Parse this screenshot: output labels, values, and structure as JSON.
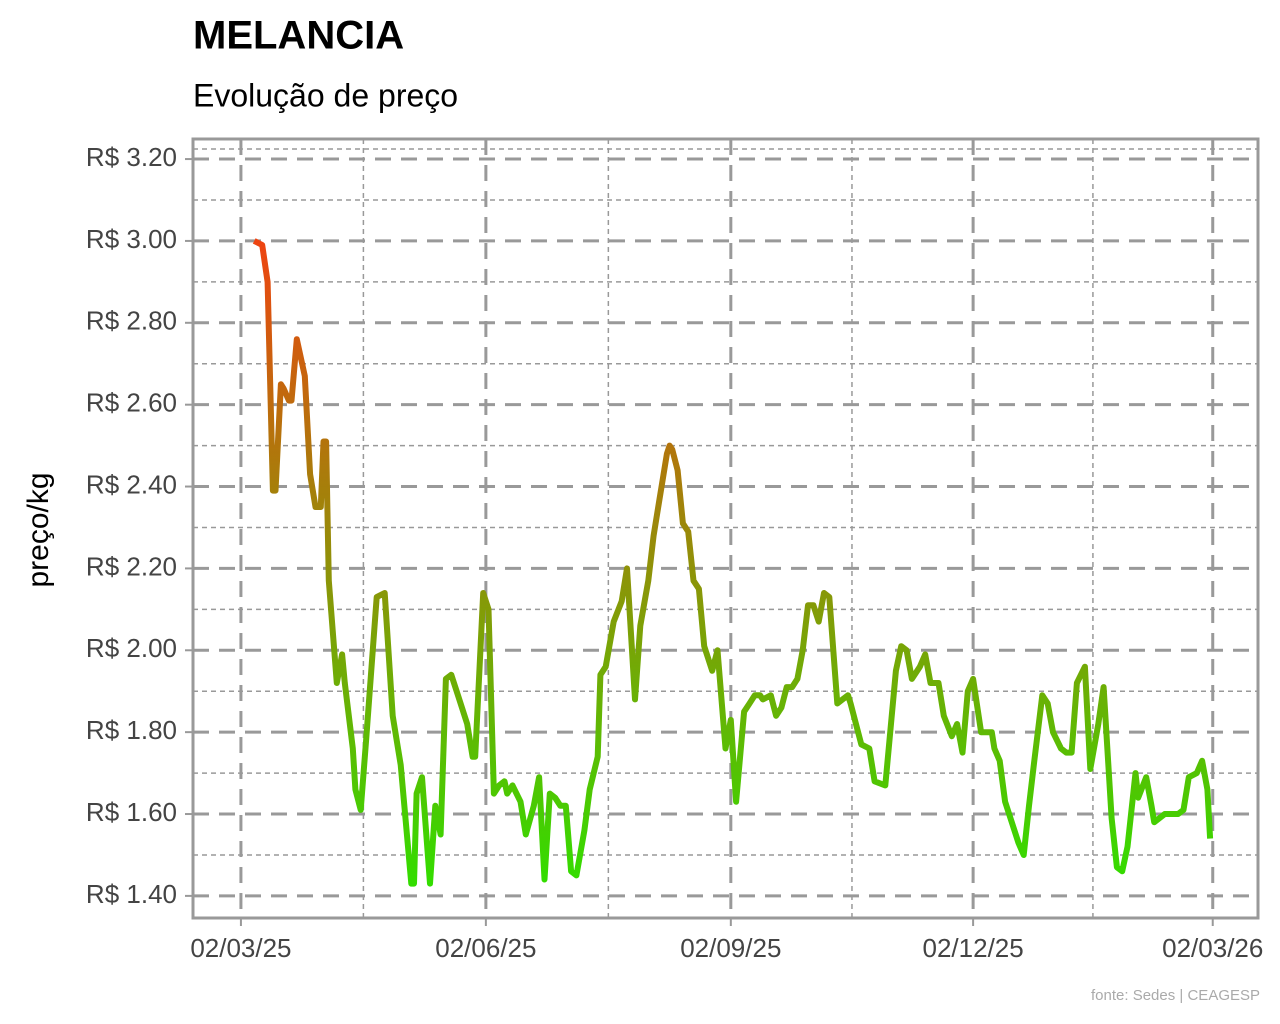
{
  "chart_data": {
    "type": "line",
    "title": "MELANCIA",
    "subtitle": "Evolução de preço",
    "y_label": "preço/kg",
    "caption": "fonte: Sedes | CEAGESP",
    "line_colors": [
      "#33dd00",
      "#ee4411"
    ],
    "grid": true,
    "xlim": [
      "12/02/25",
      "19/03/26"
    ],
    "xticks": [
      "02/03/25",
      "02/06/25",
      "02/09/25",
      "02/12/25",
      "02/03/26"
    ],
    "ylim": [
      1.346,
      3.249
    ],
    "yticks": [
      {
        "value": 1.4,
        "label": "R$ 1.40"
      },
      {
        "value": 1.6,
        "label": "R$ 1.60"
      },
      {
        "value": 1.8,
        "label": "R$ 1.80"
      },
      {
        "value": 2.0,
        "label": "R$ 2.00"
      },
      {
        "value": 2.2,
        "label": "R$ 2.20"
      },
      {
        "value": 2.4,
        "label": "R$ 2.40"
      },
      {
        "value": 2.6,
        "label": "R$ 2.60"
      },
      {
        "value": 2.8,
        "label": "R$ 2.80"
      },
      {
        "value": 3.0,
        "label": "R$ 3.00"
      },
      {
        "value": 3.2,
        "label": "R$ 3.20"
      }
    ],
    "x": [
      "07/03/25",
      "10/03/25",
      "12/03/25",
      "14/03/25",
      "15/03/25",
      "17/03/25",
      "18/03/25",
      "20/03/25",
      "21/03/25",
      "23/03/25",
      "26/03/25",
      "28/03/25",
      "30/03/25",
      "01/04/25",
      "02/04/25",
      "03/04/25",
      "04/04/25",
      "07/04/25",
      "09/04/25",
      "10/04/25",
      "13/04/25",
      "14/04/25",
      "16/04/25",
      "18/04/25",
      "22/04/25",
      "25/04/25",
      "28/04/25",
      "01/05/25",
      "05/05/25",
      "06/05/25",
      "07/05/25",
      "09/05/25",
      "12/05/25",
      "14/05/25",
      "16/05/25",
      "18/05/25",
      "20/05/25",
      "23/05/25",
      "26/05/25",
      "28/05/25",
      "29/05/25",
      "01/06/25",
      "03/06/25",
      "05/06/25",
      "07/06/25",
      "09/06/25",
      "10/06/25",
      "12/06/25",
      "15/06/25",
      "17/06/25",
      "20/06/25",
      "22/06/25",
      "24/06/25",
      "26/06/25",
      "28/06/25",
      "30/06/25",
      "02/07/25",
      "04/07/25",
      "06/07/25",
      "09/07/25",
      "11/07/25",
      "14/07/25",
      "15/07/25",
      "17/07/25",
      "20/07/25",
      "23/07/25",
      "25/07/25",
      "28/07/25",
      "30/07/25",
      "02/08/25",
      "04/08/25",
      "06/08/25",
      "09/08/25",
      "10/08/25",
      "11/08/25",
      "13/08/25",
      "15/08/25",
      "17/08/25",
      "19/08/25",
      "21/08/25",
      "23/08/25",
      "26/08/25",
      "28/08/25",
      "31/08/25",
      "02/09/25",
      "04/09/25",
      "07/09/25",
      "09/09/25",
      "11/09/25",
      "13/09/25",
      "14/09/25",
      "17/09/25",
      "19/09/25",
      "21/09/25",
      "23/09/25",
      "25/09/25",
      "27/09/25",
      "29/09/25",
      "01/10/25",
      "03/10/25",
      "05/10/25",
      "07/10/25",
      "09/10/25",
      "12/10/25",
      "14/10/25",
      "16/10/25",
      "17/10/25",
      "21/10/25",
      "24/10/25",
      "26/10/25",
      "30/10/25",
      "01/11/25",
      "03/11/25",
      "05/11/25",
      "07/11/25",
      "09/11/25",
      "12/11/25",
      "14/11/25",
      "16/11/25",
      "19/11/25",
      "21/11/25",
      "24/11/25",
      "26/11/25",
      "28/11/25",
      "30/11/25",
      "02/12/25",
      "05/12/25",
      "07/12/25",
      "09/12/25",
      "10/12/25",
      "12/12/25",
      "14/12/25",
      "17/12/25",
      "19/12/25",
      "21/12/25",
      "23/12/25",
      "25/12/25",
      "28/12/25",
      "30/12/25",
      "01/01/26",
      "04/01/26",
      "06/01/26",
      "08/01/26",
      "10/01/26",
      "13/01/26",
      "15/01/26",
      "18/01/26",
      "20/01/26",
      "23/01/26",
      "25/01/26",
      "27/01/26",
      "29/01/26",
      "01/02/26",
      "02/02/26",
      "05/02/26",
      "07/02/26",
      "08/02/26",
      "10/02/26",
      "12/02/26",
      "15/02/26",
      "17/02/26",
      "19/02/26",
      "21/02/26",
      "24/02/26",
      "26/02/26",
      "28/02/26",
      "01/03/26"
    ],
    "values": [
      3.0,
      2.99,
      2.9,
      2.39,
      2.39,
      2.65,
      2.64,
      2.61,
      2.61,
      2.76,
      2.67,
      2.43,
      2.35,
      2.35,
      2.51,
      2.51,
      2.17,
      1.92,
      1.99,
      1.92,
      1.76,
      1.66,
      1.61,
      1.78,
      2.13,
      2.14,
      1.84,
      1.72,
      1.43,
      1.43,
      1.65,
      1.69,
      1.43,
      1.62,
      1.55,
      1.93,
      1.94,
      1.88,
      1.82,
      1.74,
      1.74,
      2.14,
      2.1,
      1.65,
      1.67,
      1.68,
      1.65,
      1.67,
      1.63,
      1.55,
      1.62,
      1.69,
      1.44,
      1.65,
      1.64,
      1.62,
      1.62,
      1.46,
      1.45,
      1.56,
      1.66,
      1.74,
      1.94,
      1.96,
      2.07,
      2.12,
      2.2,
      1.88,
      2.06,
      2.17,
      2.28,
      2.36,
      2.48,
      2.5,
      2.49,
      2.44,
      2.31,
      2.29,
      2.17,
      2.15,
      2.01,
      1.95,
      2.0,
      1.76,
      1.83,
      1.63,
      1.85,
      1.87,
      1.89,
      1.89,
      1.88,
      1.89,
      1.84,
      1.86,
      1.91,
      1.91,
      1.93,
      2.0,
      2.11,
      2.11,
      2.07,
      2.14,
      2.13,
      1.87,
      1.88,
      1.89,
      1.87,
      1.77,
      1.76,
      1.68,
      1.67,
      1.81,
      1.95,
      2.01,
      2.0,
      1.93,
      1.96,
      1.99,
      1.92,
      1.92,
      1.84,
      1.79,
      1.82,
      1.75,
      1.9,
      1.93,
      1.8,
      1.8,
      1.8,
      1.76,
      1.73,
      1.63,
      1.57,
      1.53,
      1.5,
      1.62,
      1.73,
      1.89,
      1.87,
      1.8,
      1.76,
      1.75,
      1.75,
      1.92,
      1.96,
      1.71,
      1.82,
      1.91,
      1.59,
      1.47,
      1.46,
      1.52,
      1.7,
      1.64,
      1.69,
      1.62,
      1.58,
      1.59,
      1.6,
      1.6,
      1.6,
      1.61,
      1.69,
      1.7,
      1.73,
      1.66,
      1.54
    ]
  }
}
